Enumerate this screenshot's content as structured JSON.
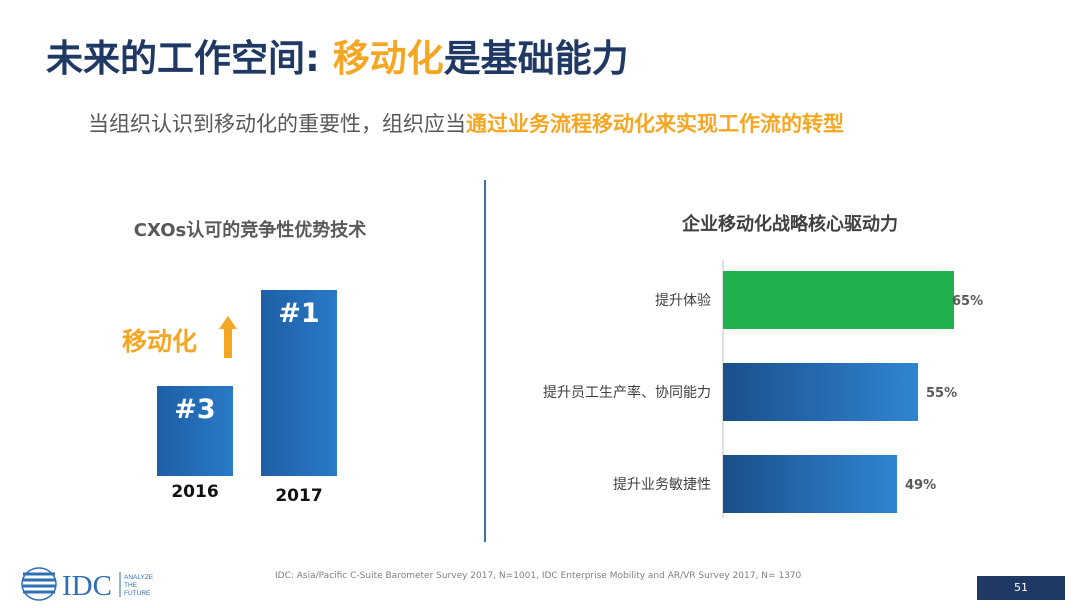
{
  "slide": {
    "title_part1": "未来的工作空间: ",
    "title_part2": "移动化",
    "title_part3": "是基础能力",
    "subtitle_part1": "当组织认识到移动化的重要性，组织应当",
    "subtitle_part2": "通过业务流程移动化来实现工作流的转型",
    "left_panel_title": "CXOs认可的竞争性优势技术",
    "right_panel_title": "企业移动化战略核心驱动力",
    "mobile_label": "移动化",
    "footer_source": "IDC: Asia/Pacific C-Suite Barometer Survey 2017, N=1001, IDC Enterprise Mobility and AR/VR Survey 2017, N= 1370",
    "page_number": "51",
    "logo_text": "IDC",
    "logo_tagline": [
      "ANALYZE",
      "THE",
      "FUTURE"
    ]
  },
  "colors": {
    "title": "#1f3864",
    "accent": "#f5a623",
    "bar_blue": "#1f65ad",
    "bar_green": "#22b14c"
  },
  "chart_data": [
    {
      "type": "bar",
      "title": "CXOs认可的竞争性优势技术",
      "categories": [
        "2016",
        "2017"
      ],
      "values": [
        3,
        1
      ],
      "labels": [
        "#3",
        "#1"
      ],
      "annotation": "移动化"
    },
    {
      "type": "bar",
      "orientation": "horizontal",
      "title": "企业移动化战略核心驱动力",
      "categories": [
        "提升体验",
        "提升员工生产率、协同能力",
        "提升业务敏捷性"
      ],
      "values": [
        65,
        55,
        49
      ],
      "labels": [
        "65%",
        "55%",
        "49%"
      ],
      "unit": "%",
      "xlim": [
        0,
        100
      ],
      "highlight_index": 0
    }
  ]
}
